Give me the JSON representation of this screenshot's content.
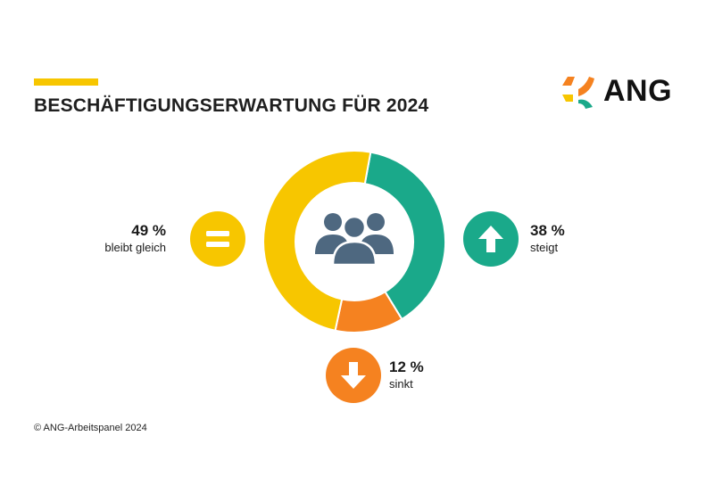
{
  "title": "BESCHÄFTIGUNGSERWARTUNG FÜR 2024",
  "logo": {
    "text": "ANG"
  },
  "footer": "© ANG-Arbeitspanel 2024",
  "colors": {
    "accent": "#f7c600",
    "gleich": "#f7c600",
    "steigt": "#1aa98a",
    "sinkt": "#f58220",
    "people": "#4e6880",
    "logo_orange": "#f58220",
    "logo_green": "#1aa98a",
    "logo_yellow": "#f7c600"
  },
  "icons": {
    "gleich": "equals-icon",
    "steigt": "arrow-up-icon",
    "sinkt": "arrow-down-icon",
    "center": "people-group-icon"
  },
  "labels": {
    "gleich": {
      "pct": "49 %",
      "text": "bleibt gleich"
    },
    "steigt": {
      "pct": "38 %",
      "text": "steigt"
    },
    "sinkt": {
      "pct": "12 %",
      "text": "sinkt"
    }
  },
  "chart_data": {
    "type": "pie",
    "title": "BESCHÄFTIGUNGSERWARTUNG FÜR 2024",
    "categories": [
      "steigt",
      "sinkt",
      "bleibt gleich"
    ],
    "values": [
      38,
      12,
      49
    ],
    "unit": "%",
    "colors": [
      "#1aa98a",
      "#f58220",
      "#f7c600"
    ]
  }
}
